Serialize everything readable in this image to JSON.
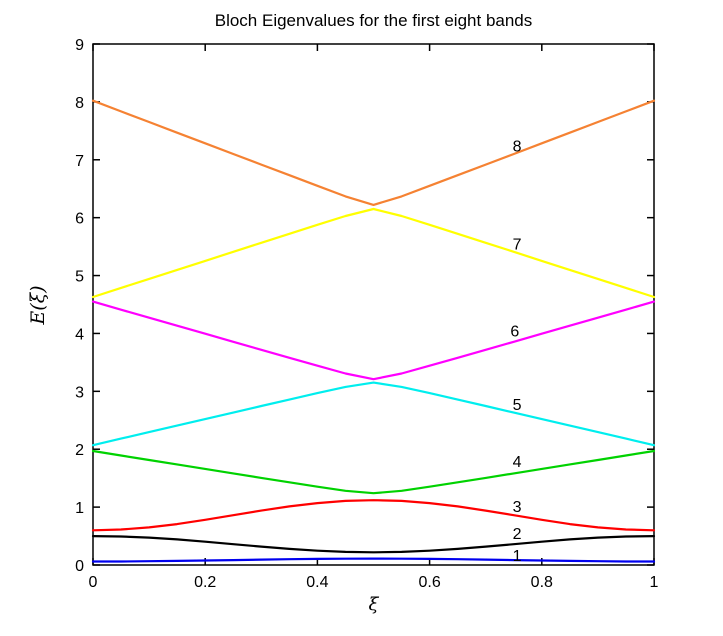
{
  "chart_data": {
    "type": "line",
    "title": "Bloch Eigenvalues for the first eight bands",
    "xlabel": "ξ",
    "ylabel": "E(ξ)",
    "xlim": [
      0,
      1
    ],
    "ylim": [
      0,
      9
    ],
    "grid": false,
    "legend_position": "none",
    "xticks": [
      0,
      0.2,
      0.4,
      0.6,
      0.8,
      1
    ],
    "xtick_labels": [
      "0",
      "0.2",
      "0.4",
      "0.6",
      "0.8",
      "1"
    ],
    "yticks": [
      0,
      1,
      2,
      3,
      4,
      5,
      6,
      7,
      8,
      9
    ],
    "ytick_labels": [
      "0",
      "1",
      "2",
      "3",
      "4",
      "5",
      "6",
      "7",
      "8",
      "9"
    ],
    "x": [
      0,
      0.05,
      0.1,
      0.15,
      0.2,
      0.25,
      0.3,
      0.35,
      0.4,
      0.45,
      0.5,
      0.55,
      0.6,
      0.65,
      0.7,
      0.75,
      0.8,
      0.85,
      0.9,
      0.95,
      1
    ],
    "series": [
      {
        "name": "band-1",
        "label": "1",
        "color": "#0000EE",
        "values": [
          0.06,
          0.061,
          0.065,
          0.07,
          0.077,
          0.085,
          0.093,
          0.1,
          0.105,
          0.109,
          0.11,
          0.109,
          0.105,
          0.1,
          0.093,
          0.085,
          0.077,
          0.07,
          0.065,
          0.061,
          0.06
        ]
      },
      {
        "name": "band-2",
        "label": "2",
        "color": "#000000",
        "values": [
          0.5,
          0.493,
          0.473,
          0.442,
          0.403,
          0.36,
          0.317,
          0.278,
          0.247,
          0.227,
          0.22,
          0.227,
          0.247,
          0.278,
          0.317,
          0.36,
          0.403,
          0.442,
          0.473,
          0.493,
          0.5
        ]
      },
      {
        "name": "band-3",
        "label": "3",
        "color": "#FF0000",
        "values": [
          0.6,
          0.613,
          0.65,
          0.707,
          0.78,
          0.86,
          0.94,
          1.013,
          1.07,
          1.107,
          1.12,
          1.107,
          1.07,
          1.013,
          0.94,
          0.86,
          0.78,
          0.707,
          0.65,
          0.613,
          0.6
        ]
      },
      {
        "name": "band-4",
        "label": "4",
        "color": "#00D200",
        "values": [
          1.97,
          1.892,
          1.814,
          1.737,
          1.66,
          1.582,
          1.505,
          1.429,
          1.353,
          1.282,
          1.24,
          1.282,
          1.353,
          1.429,
          1.505,
          1.582,
          1.66,
          1.737,
          1.814,
          1.892,
          1.97
        ]
      },
      {
        "name": "band-5",
        "label": "5",
        "color": "#00EEEE",
        "values": [
          2.07,
          2.183,
          2.295,
          2.408,
          2.521,
          2.633,
          2.746,
          2.858,
          2.969,
          3.077,
          3.15,
          3.077,
          2.969,
          2.858,
          2.746,
          2.633,
          2.521,
          2.408,
          2.295,
          2.183,
          2.07
        ]
      },
      {
        "name": "band-6",
        "label": "6",
        "color": "#FF00FF",
        "values": [
          4.55,
          4.411,
          4.272,
          4.134,
          3.995,
          3.856,
          3.718,
          3.58,
          3.442,
          3.308,
          3.21,
          3.308,
          3.442,
          3.58,
          3.718,
          3.856,
          3.995,
          4.134,
          4.272,
          4.411,
          4.55
        ]
      },
      {
        "name": "band-7",
        "label": "7",
        "color": "#FFFF00",
        "values": [
          4.63,
          4.786,
          4.942,
          5.098,
          5.254,
          5.41,
          5.565,
          5.721,
          5.876,
          6.029,
          6.15,
          6.029,
          5.876,
          5.721,
          5.565,
          5.41,
          5.254,
          5.098,
          4.942,
          4.786,
          4.63
        ]
      },
      {
        "name": "band-8",
        "label": "8",
        "color": "#F58233",
        "values": [
          8.02,
          7.836,
          7.652,
          7.468,
          7.284,
          7.1,
          6.917,
          6.733,
          6.55,
          6.368,
          6.22,
          6.368,
          6.55,
          6.733,
          6.917,
          7.1,
          7.284,
          7.468,
          7.652,
          7.836,
          8.02
        ]
      }
    ],
    "annotations": [
      {
        "text": "8",
        "x": 0.756,
        "y": 7.25
      },
      {
        "text": "7",
        "x": 0.756,
        "y": 5.55
      },
      {
        "text": "6",
        "x": 0.752,
        "y": 4.05
      },
      {
        "text": "5",
        "x": 0.756,
        "y": 2.78
      },
      {
        "text": "4",
        "x": 0.756,
        "y": 1.8
      },
      {
        "text": "3",
        "x": 0.756,
        "y": 1.02
      },
      {
        "text": "2",
        "x": 0.756,
        "y": 0.55
      },
      {
        "text": "1",
        "x": 0.756,
        "y": 0.17
      }
    ]
  }
}
